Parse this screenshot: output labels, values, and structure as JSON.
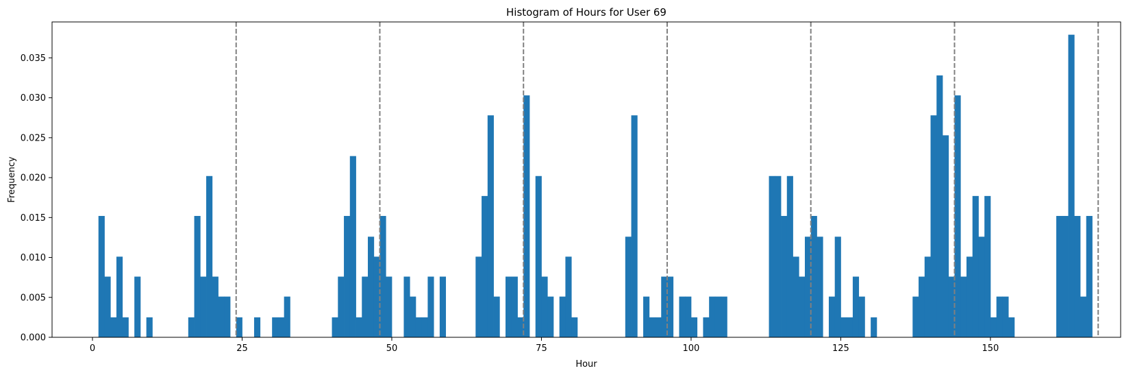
{
  "chart_data": {
    "type": "bar",
    "title": "Histogram of Hours for User 69",
    "xlabel": "Hour",
    "ylabel": "Frequency",
    "xlim": [
      -6.75,
      171.75
    ],
    "ylim": [
      0,
      0.0395
    ],
    "xticks": [
      0,
      25,
      50,
      75,
      100,
      125,
      150
    ],
    "yticks": [
      0.0,
      0.005,
      0.01,
      0.015,
      0.02,
      0.025,
      0.03,
      0.035
    ],
    "ytick_labels": [
      "0.000",
      "0.005",
      "0.010",
      "0.015",
      "0.020",
      "0.025",
      "0.030",
      "0.035"
    ],
    "bin_width": 1,
    "bar_color": "#1f77b4",
    "vlines": [
      24,
      48,
      72,
      96,
      120,
      144,
      168
    ],
    "vline_color": "#808080",
    "vline_style": "dashed",
    "bins": [
      {
        "x": 1,
        "y": 0.0152
      },
      {
        "x": 2,
        "y": 0.0076
      },
      {
        "x": 3,
        "y": 0.0025
      },
      {
        "x": 4,
        "y": 0.0101
      },
      {
        "x": 5,
        "y": 0.0025
      },
      {
        "x": 7,
        "y": 0.0076
      },
      {
        "x": 9,
        "y": 0.0025
      },
      {
        "x": 16,
        "y": 0.0025
      },
      {
        "x": 17,
        "y": 0.0152
      },
      {
        "x": 18,
        "y": 0.0076
      },
      {
        "x": 19,
        "y": 0.0202
      },
      {
        "x": 20,
        "y": 0.0076
      },
      {
        "x": 21,
        "y": 0.0051
      },
      {
        "x": 22,
        "y": 0.0051
      },
      {
        "x": 24,
        "y": 0.0025
      },
      {
        "x": 27,
        "y": 0.0025
      },
      {
        "x": 30,
        "y": 0.0025
      },
      {
        "x": 31,
        "y": 0.0025
      },
      {
        "x": 32,
        "y": 0.0051
      },
      {
        "x": 40,
        "y": 0.0025
      },
      {
        "x": 41,
        "y": 0.0076
      },
      {
        "x": 42,
        "y": 0.0152
      },
      {
        "x": 43,
        "y": 0.0227
      },
      {
        "x": 44,
        "y": 0.0025
      },
      {
        "x": 45,
        "y": 0.0076
      },
      {
        "x": 46,
        "y": 0.0126
      },
      {
        "x": 47,
        "y": 0.0101
      },
      {
        "x": 48,
        "y": 0.0152
      },
      {
        "x": 49,
        "y": 0.0076
      },
      {
        "x": 52,
        "y": 0.0076
      },
      {
        "x": 53,
        "y": 0.0051
      },
      {
        "x": 54,
        "y": 0.0025
      },
      {
        "x": 55,
        "y": 0.0025
      },
      {
        "x": 56,
        "y": 0.0076
      },
      {
        "x": 58,
        "y": 0.0076
      },
      {
        "x": 64,
        "y": 0.0101
      },
      {
        "x": 65,
        "y": 0.0177
      },
      {
        "x": 66,
        "y": 0.0278
      },
      {
        "x": 67,
        "y": 0.0051
      },
      {
        "x": 69,
        "y": 0.0076
      },
      {
        "x": 70,
        "y": 0.0076
      },
      {
        "x": 71,
        "y": 0.0025
      },
      {
        "x": 72,
        "y": 0.0303
      },
      {
        "x": 74,
        "y": 0.0202
      },
      {
        "x": 75,
        "y": 0.0076
      },
      {
        "x": 76,
        "y": 0.0051
      },
      {
        "x": 78,
        "y": 0.0051
      },
      {
        "x": 79,
        "y": 0.0101
      },
      {
        "x": 80,
        "y": 0.0025
      },
      {
        "x": 89,
        "y": 0.0126
      },
      {
        "x": 90,
        "y": 0.0278
      },
      {
        "x": 92,
        "y": 0.0051
      },
      {
        "x": 93,
        "y": 0.0025
      },
      {
        "x": 94,
        "y": 0.0025
      },
      {
        "x": 95,
        "y": 0.0076
      },
      {
        "x": 96,
        "y": 0.0076
      },
      {
        "x": 98,
        "y": 0.0051
      },
      {
        "x": 99,
        "y": 0.0051
      },
      {
        "x": 100,
        "y": 0.0025
      },
      {
        "x": 102,
        "y": 0.0025
      },
      {
        "x": 103,
        "y": 0.0051
      },
      {
        "x": 104,
        "y": 0.0051
      },
      {
        "x": 105,
        "y": 0.0051
      },
      {
        "x": 113,
        "y": 0.0202
      },
      {
        "x": 114,
        "y": 0.0202
      },
      {
        "x": 115,
        "y": 0.0152
      },
      {
        "x": 116,
        "y": 0.0202
      },
      {
        "x": 117,
        "y": 0.0101
      },
      {
        "x": 118,
        "y": 0.0076
      },
      {
        "x": 119,
        "y": 0.0126
      },
      {
        "x": 120,
        "y": 0.0152
      },
      {
        "x": 121,
        "y": 0.0126
      },
      {
        "x": 123,
        "y": 0.0051
      },
      {
        "x": 124,
        "y": 0.0126
      },
      {
        "x": 125,
        "y": 0.0025
      },
      {
        "x": 126,
        "y": 0.0025
      },
      {
        "x": 127,
        "y": 0.0076
      },
      {
        "x": 128,
        "y": 0.0051
      },
      {
        "x": 130,
        "y": 0.0025
      },
      {
        "x": 137,
        "y": 0.0051
      },
      {
        "x": 138,
        "y": 0.0076
      },
      {
        "x": 139,
        "y": 0.0101
      },
      {
        "x": 140,
        "y": 0.0278
      },
      {
        "x": 141,
        "y": 0.0328
      },
      {
        "x": 142,
        "y": 0.0253
      },
      {
        "x": 143,
        "y": 0.0076
      },
      {
        "x": 144,
        "y": 0.0303
      },
      {
        "x": 145,
        "y": 0.0076
      },
      {
        "x": 146,
        "y": 0.0101
      },
      {
        "x": 147,
        "y": 0.0177
      },
      {
        "x": 148,
        "y": 0.0126
      },
      {
        "x": 149,
        "y": 0.0177
      },
      {
        "x": 150,
        "y": 0.0025
      },
      {
        "x": 151,
        "y": 0.0051
      },
      {
        "x": 152,
        "y": 0.0051
      },
      {
        "x": 153,
        "y": 0.0025
      },
      {
        "x": 161,
        "y": 0.0152
      },
      {
        "x": 162,
        "y": 0.0152
      },
      {
        "x": 163,
        "y": 0.0379
      },
      {
        "x": 164,
        "y": 0.0152
      },
      {
        "x": 165,
        "y": 0.0051
      },
      {
        "x": 166,
        "y": 0.0152
      }
    ]
  }
}
